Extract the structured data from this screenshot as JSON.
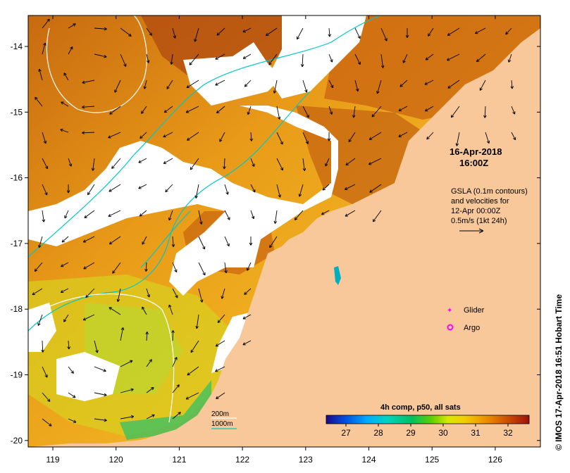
{
  "map": {
    "timestamp_date": "16-Apr-2018",
    "timestamp_time": "16:00Z",
    "gsla_lines": [
      "GSLA (0.1m contours)",
      "and velocities for",
      "12-Apr 00:00Z",
      "0.5m/s (1kt 24h)"
    ],
    "legend": {
      "glider_label": "Glider",
      "argo_label": "Argo",
      "glider_color": "#ff00ff",
      "argo_color": "#ff00ff"
    },
    "bathymetry": {
      "contour_200_label": "200m",
      "contour_1000_label": "1000m",
      "contour_200_color": "#ffffff",
      "contour_1000_color": "#00c8c8"
    },
    "colorbar": {
      "title": "4h comp, p50, all sats",
      "ticks": [
        "27",
        "28",
        "29",
        "30",
        "31",
        "32"
      ],
      "colors": [
        "#1a0a8c",
        "#0055e0",
        "#00aaff",
        "#00d4c0",
        "#00c060",
        "#60d000",
        "#d8e800",
        "#f0d000",
        "#f0a000",
        "#e07000",
        "#c04000",
        "#a01010"
      ]
    },
    "x_ticks": [
      "119",
      "120",
      "121",
      "122",
      "123",
      "124",
      "125",
      "126"
    ],
    "y_ticks": [
      "-14",
      "-15",
      "-16",
      "-17",
      "-18",
      "-19",
      "-20"
    ],
    "side_credit": "© IMOS 17-Apr-2018 16:51 Hobart Time",
    "land_color": "#f8c89a",
    "cloud_color": "#ffffff"
  }
}
